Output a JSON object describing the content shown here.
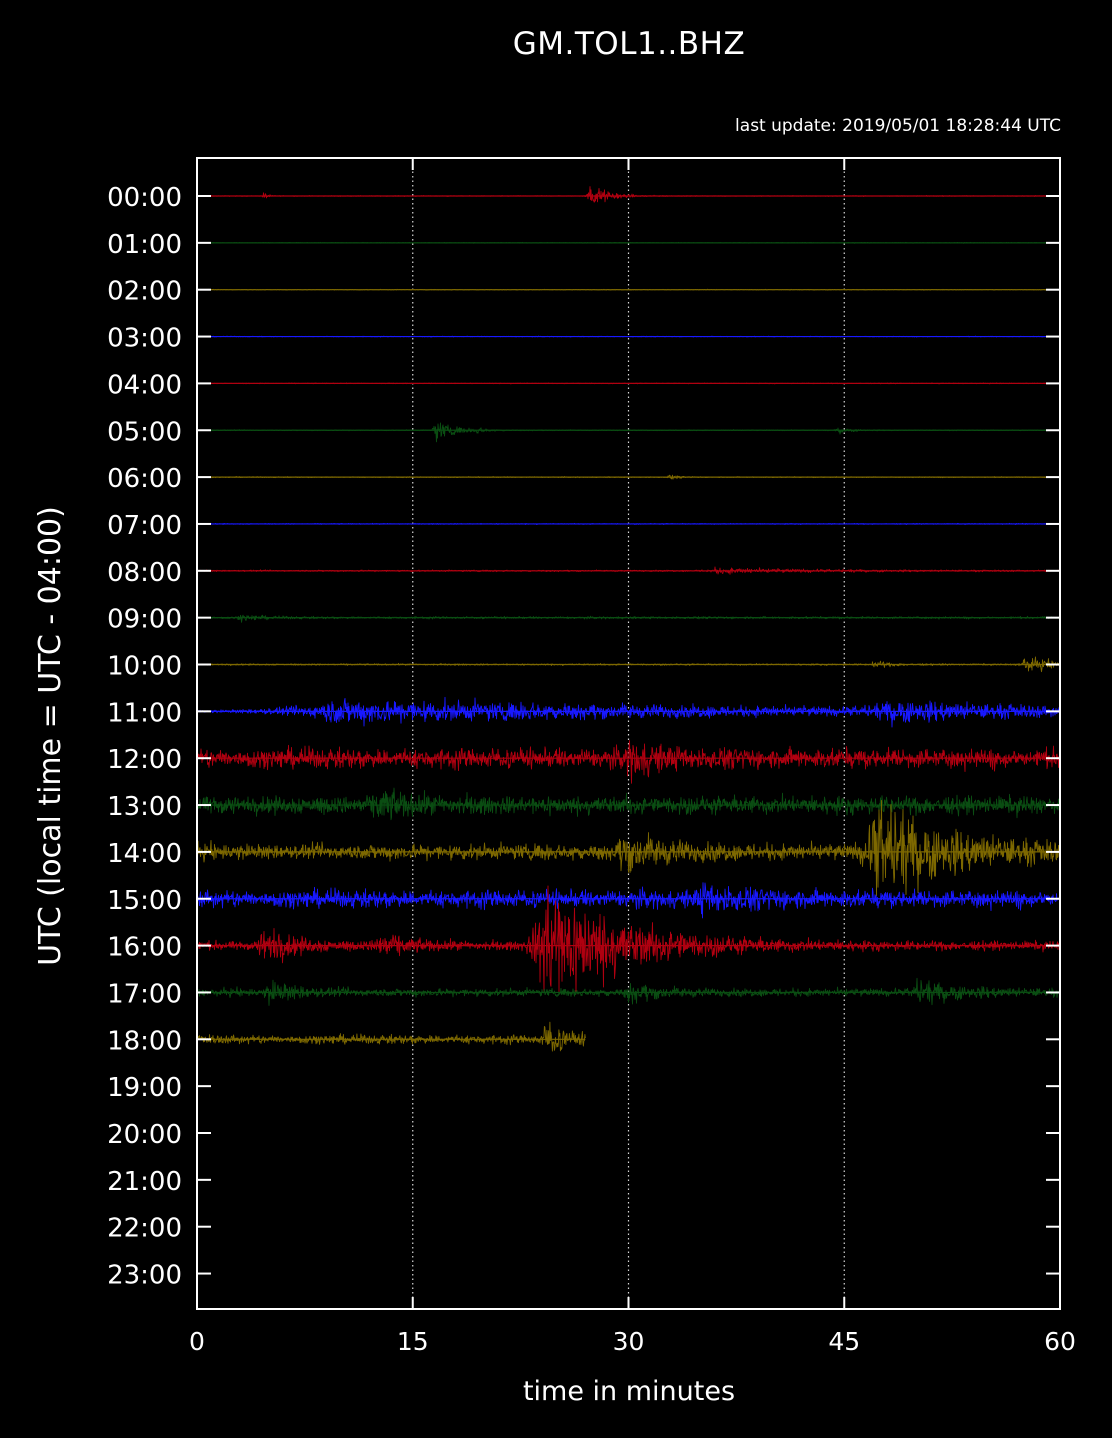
{
  "chart_data": {
    "type": "line",
    "title": "GM.TOL1..BHZ",
    "subtitle": "last update: 2019/05/01 18:28:44 UTC",
    "xlabel": "time in minutes",
    "ylabel": "UTC (local time = UTC - 04:00)",
    "xlim": [
      0,
      60
    ],
    "x_ticks": [
      "0",
      "15",
      "30",
      "45",
      "60"
    ],
    "y_ticks": [
      "00:00",
      "01:00",
      "02:00",
      "03:00",
      "04:00",
      "05:00",
      "06:00",
      "07:00",
      "08:00",
      "09:00",
      "10:00",
      "11:00",
      "12:00",
      "13:00",
      "14:00",
      "15:00",
      "16:00",
      "17:00",
      "18:00",
      "19:00",
      "20:00",
      "21:00",
      "22:00",
      "23:00"
    ],
    "grid": "vertical dotted at 15, 30, 45 minutes",
    "colors": {
      "red": "#b00010",
      "green": "#0a4d12",
      "olive": "#7d6800",
      "blue": "#1818ff",
      "axes": "#ffffff"
    },
    "traces": [
      {
        "hour": "00:00",
        "color": "red",
        "end_minute": 60,
        "noise": 0.3,
        "events": [
          {
            "minute": 4.6,
            "amplitude": 3,
            "duration": 0.3
          },
          {
            "minute": 27.3,
            "amplitude": 10,
            "duration": 1.2
          }
        ]
      },
      {
        "hour": "01:00",
        "color": "green",
        "end_minute": 60,
        "noise": 0.3,
        "events": []
      },
      {
        "hour": "02:00",
        "color": "olive",
        "end_minute": 60,
        "noise": 0.3,
        "events": []
      },
      {
        "hour": "03:00",
        "color": "blue",
        "end_minute": 60,
        "noise": 0.3,
        "events": []
      },
      {
        "hour": "04:00",
        "color": "red",
        "end_minute": 60,
        "noise": 0.3,
        "events": []
      },
      {
        "hour": "05:00",
        "color": "green",
        "end_minute": 60,
        "noise": 0.4,
        "events": [
          {
            "minute": 16.5,
            "amplitude": 9,
            "duration": 1.2
          },
          {
            "minute": 19.3,
            "amplitude": 2,
            "duration": 0.6
          },
          {
            "minute": 44.5,
            "amplitude": 2.5,
            "duration": 0.8
          }
        ]
      },
      {
        "hour": "06:00",
        "color": "olive",
        "end_minute": 60,
        "noise": 0.4,
        "events": [
          {
            "minute": 32.8,
            "amplitude": 2,
            "duration": 0.6
          }
        ]
      },
      {
        "hour": "07:00",
        "color": "blue",
        "end_minute": 60,
        "noise": 0.4,
        "events": []
      },
      {
        "hour": "08:00",
        "color": "red",
        "end_minute": 60,
        "noise": 0.7,
        "events": [
          {
            "minute": 36,
            "amplitude": 2,
            "duration": 6
          }
        ]
      },
      {
        "hour": "09:00",
        "color": "green",
        "end_minute": 60,
        "noise": 1.0,
        "events": [
          {
            "minute": 3,
            "amplitude": 2,
            "duration": 1.5
          }
        ]
      },
      {
        "hour": "10:00",
        "color": "olive",
        "end_minute": 60,
        "noise": 0.7,
        "events": [
          {
            "minute": 47,
            "amplitude": 2.5,
            "duration": 1.2
          },
          {
            "minute": 57.5,
            "amplitude": 6,
            "duration": 2.2
          }
        ]
      },
      {
        "hour": "11:00",
        "color": "blue",
        "end_minute": 60,
        "noise": 1.0,
        "events": [
          {
            "minute": 9,
            "amplitude": 9,
            "duration": 30
          },
          {
            "minute": 48,
            "amplitude": 6,
            "duration": 10
          }
        ]
      },
      {
        "hour": "12:00",
        "color": "red",
        "end_minute": 60,
        "noise": 9,
        "events": [
          {
            "minute": 30,
            "amplitude": 10,
            "duration": 2
          }
        ]
      },
      {
        "hour": "13:00",
        "color": "green",
        "end_minute": 60,
        "noise": 8,
        "events": [
          {
            "minute": 12.5,
            "amplitude": 8,
            "duration": 2
          }
        ]
      },
      {
        "hour": "14:00",
        "color": "olive",
        "end_minute": 60,
        "noise": 7,
        "events": [
          {
            "minute": 29.5,
            "amplitude": 12,
            "duration": 3
          },
          {
            "minute": 47,
            "amplitude": 34,
            "duration": 5
          }
        ]
      },
      {
        "hour": "15:00",
        "color": "blue",
        "end_minute": 60,
        "noise": 8,
        "events": [
          {
            "minute": 35,
            "amplitude": 7,
            "duration": 3
          }
        ]
      },
      {
        "hour": "16:00",
        "color": "red",
        "end_minute": 60,
        "noise": 4,
        "events": [
          {
            "minute": 4.5,
            "amplitude": 14,
            "duration": 2
          },
          {
            "minute": 12.5,
            "amplitude": 8,
            "duration": 2
          },
          {
            "minute": 24,
            "amplitude": 50,
            "duration": 5
          }
        ]
      },
      {
        "hour": "17:00",
        "color": "green",
        "end_minute": 60,
        "noise": 3.5,
        "events": [
          {
            "minute": 5,
            "amplitude": 7,
            "duration": 2
          },
          {
            "minute": 30,
            "amplitude": 6,
            "duration": 2
          },
          {
            "minute": 50,
            "amplitude": 7,
            "duration": 3
          }
        ]
      },
      {
        "hour": "18:00",
        "color": "olive",
        "end_minute": 27,
        "noise": 4,
        "events": [
          {
            "minute": 24.2,
            "amplitude": 14,
            "duration": 1.2
          }
        ]
      }
    ]
  }
}
